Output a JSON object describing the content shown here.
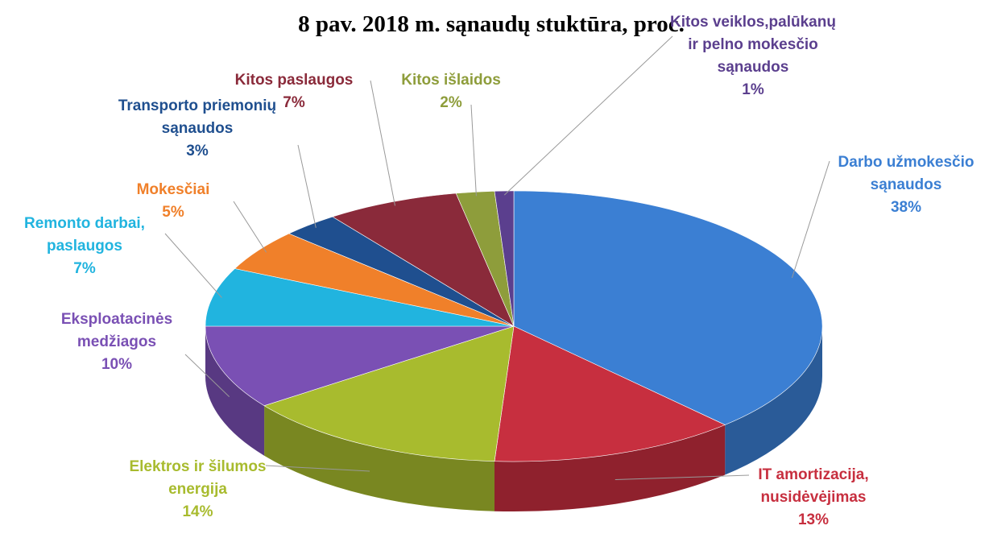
{
  "chart_data": {
    "type": "pie3d",
    "title": "8 pav. 2018 m. sąnaudų stuktūra, proc.",
    "categories": [
      "Darbo užmokesčio sąnaudos",
      "IT  amortizacija, nusidėvėjimas",
      "Elektros ir šilumos energija",
      "Eksploatacinės medžiagos",
      "Remonto darbai, paslaugos",
      "Mokesčiai",
      "Transporto priemonių sąnaudos",
      "Kitos paslaugos",
      "Kitos išlaidos",
      "Kitos veiklos,palūkanų ir pelno mokesčio sąnaudos"
    ],
    "values": [
      38,
      13,
      14,
      10,
      7,
      5,
      3,
      7,
      2,
      1
    ],
    "value_labels": [
      "38%",
      "13%",
      "14%",
      "10%",
      "7%",
      "5%",
      "3%",
      "7%",
      "2%",
      "1%"
    ],
    "colors": [
      "#3b7fd3",
      "#c72f3f",
      "#a8bb2e",
      "#7a50b4",
      "#21b4df",
      "#f0802a",
      "#1f4f8f",
      "#8a2a3a",
      "#8e9d3b",
      "#5b3f8e"
    ]
  }
}
